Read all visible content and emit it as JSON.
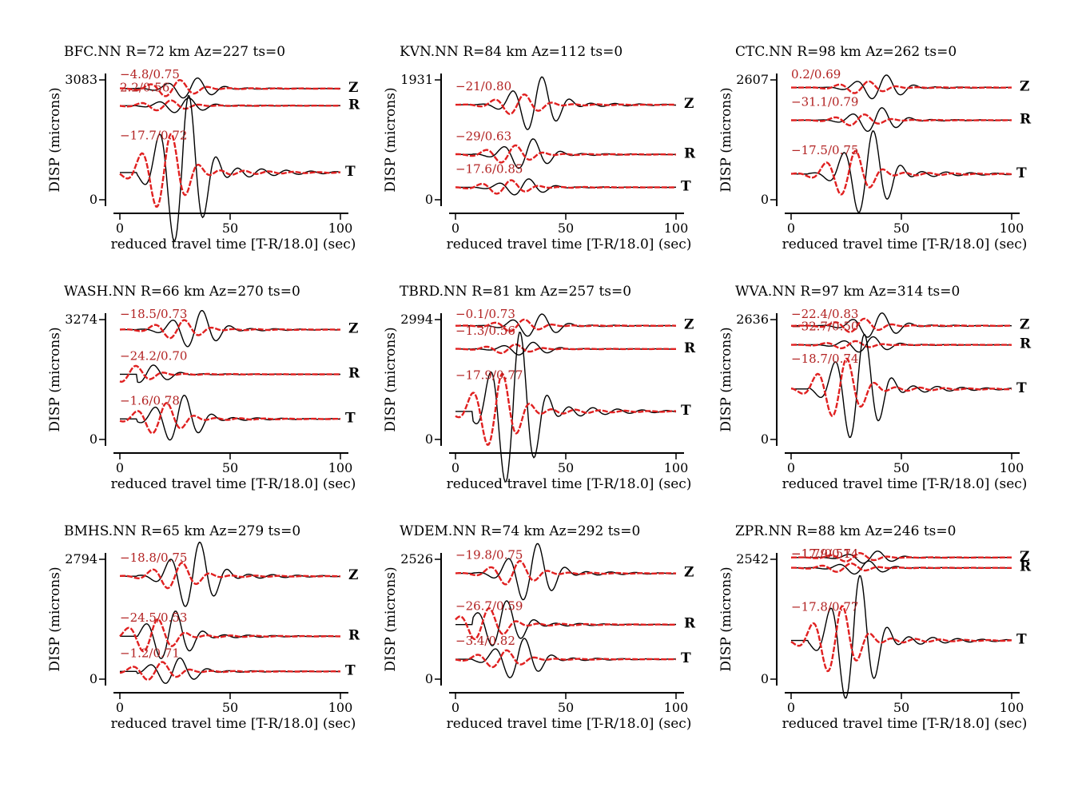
{
  "chart_data": [
    {
      "type": "line",
      "title": "BFC.NN R=72 km Az=227 ts=0",
      "ylabel": "DISP (microns)",
      "xlabel": "reduced travel time [T-R/18.0] (sec)",
      "xlim": [
        0,
        100
      ],
      "xticks": [
        "0",
        "50",
        "100"
      ],
      "ytick_top": "3083",
      "ytick_bottom": "0",
      "ylim": [
        0,
        3083
      ],
      "series_colors": {
        "observed": "#000000",
        "synthetic": "#e02020"
      },
      "traces": [
        {
          "component": "Z",
          "annotation": "−4.8/0.75",
          "baseline": 2860,
          "obs_amp": 260,
          "syn_amp": 210,
          "phase_s": 24
        },
        {
          "component": "R",
          "annotation": "2.2/0.56",
          "baseline": 2420,
          "obs_amp": 190,
          "syn_amp": 130,
          "phase_s": 20
        },
        {
          "component": "T",
          "annotation": "−17.7/0.72",
          "baseline": 700,
          "obs_amp": 1900,
          "syn_amp": 950,
          "phase_s": 20
        }
      ]
    },
    {
      "type": "line",
      "title": "KVN.NN R=84 km Az=112 ts=0",
      "ylabel": "DISP (microns)",
      "xlabel": "reduced travel time [T-R/18.0] (sec)",
      "xlim": [
        0,
        100
      ],
      "xticks": [
        "0",
        "50",
        "100"
      ],
      "ytick_top": "1931",
      "ytick_bottom": "0",
      "ylim": [
        0,
        1931
      ],
      "series_colors": {
        "observed": "#000000",
        "synthetic": "#e02020"
      },
      "traces": [
        {
          "component": "Z",
          "annotation": "−21/0.80",
          "baseline": 1530,
          "obs_amp": 430,
          "syn_amp": 160,
          "phase_s": 28
        },
        {
          "component": "R",
          "annotation": "−29/0.63",
          "baseline": 730,
          "obs_amp": 240,
          "syn_amp": 140,
          "phase_s": 24
        },
        {
          "component": "T",
          "annotation": "−17.6/0.85",
          "baseline": 200,
          "obs_amp": 130,
          "syn_amp": 110,
          "phase_s": 22
        }
      ]
    },
    {
      "type": "line",
      "title": "CTC.NN R=98 km Az=262 ts=0",
      "ylabel": "DISP (microns)",
      "xlabel": "reduced travel time [T-R/18.0] (sec)",
      "xlim": [
        0,
        100
      ],
      "xticks": [
        "0",
        "50",
        "100"
      ],
      "ytick_top": "2607",
      "ytick_bottom": "0",
      "ylim": [
        0,
        2607
      ],
      "series_colors": {
        "observed": "#000000",
        "synthetic": "#e02020"
      },
      "traces": [
        {
          "component": "Z",
          "annotation": "0.2/0.69",
          "baseline": 2440,
          "obs_amp": 260,
          "syn_amp": 130,
          "phase_s": 32
        },
        {
          "component": "R",
          "annotation": "−31.1/0.79",
          "baseline": 1730,
          "obs_amp": 260,
          "syn_amp": 120,
          "phase_s": 30
        },
        {
          "component": "T",
          "annotation": "−17.5/0.75",
          "baseline": 560,
          "obs_amp": 900,
          "syn_amp": 480,
          "phase_s": 26
        }
      ]
    },
    {
      "type": "line",
      "title": "WASH.NN R=66 km Az=270 ts=0",
      "ylabel": "DISP (microns)",
      "xlabel": "reduced travel time [T-R/18.0] (sec)",
      "xlim": [
        0,
        100
      ],
      "xticks": [
        "0",
        "50",
        "100"
      ],
      "ytick_top": "3274",
      "ytick_bottom": "0",
      "ylim": [
        0,
        3274
      ],
      "series_colors": {
        "observed": "#000000",
        "synthetic": "#e02020"
      },
      "traces": [
        {
          "component": "Z",
          "annotation": "−18.5/0.73",
          "baseline": 3000,
          "obs_amp": 500,
          "syn_amp": 250,
          "phase_s": 26
        },
        {
          "component": "R",
          "annotation": "−24.2/0.70",
          "baseline": 1780,
          "obs_amp": 240,
          "syn_amp": 220,
          "phase_s": 4
        },
        {
          "component": "T",
          "annotation": "−1.6/0.78",
          "baseline": 560,
          "obs_amp": 620,
          "syn_amp": 420,
          "phase_s": 18
        }
      ]
    },
    {
      "type": "line",
      "title": "TBRD.NN R=81 km Az=257 ts=0",
      "ylabel": "DISP (microns)",
      "xlabel": "reduced travel time [T-R/18.0] (sec)",
      "xlim": [
        0,
        100
      ],
      "xticks": [
        "0",
        "50",
        "100"
      ],
      "ytick_top": "2994",
      "ytick_bottom": "0",
      "ylim": [
        0,
        2994
      ],
      "series_colors": {
        "observed": "#000000",
        "synthetic": "#e02020"
      },
      "traces": [
        {
          "component": "Z",
          "annotation": "−0.1/0.73",
          "baseline": 2840,
          "obs_amp": 280,
          "syn_amp": 150,
          "phase_s": 28
        },
        {
          "component": "R",
          "annotation": "−1.3/0.56",
          "baseline": 2260,
          "obs_amp": 160,
          "syn_amp": 110,
          "phase_s": 24
        },
        {
          "component": "T",
          "annotation": "−17.9/0.77",
          "baseline": 700,
          "obs_amp": 1900,
          "syn_amp": 900,
          "phase_s": 18
        }
      ]
    },
    {
      "type": "line",
      "title": "WVA.NN R=97 km Az=314 ts=0",
      "ylabel": "DISP (microns)",
      "xlabel": "reduced travel time [T-R/18.0] (sec)",
      "xlim": [
        0,
        100
      ],
      "xticks": [
        "0",
        "50",
        "100"
      ],
      "ytick_top": "2636",
      "ytick_bottom": "0",
      "ylim": [
        0,
        2636
      ],
      "series_colors": {
        "observed": "#000000",
        "synthetic": "#e02020"
      },
      "traces": [
        {
          "component": "Z",
          "annotation": "−22.4/0.83",
          "baseline": 2500,
          "obs_amp": 270,
          "syn_amp": 150,
          "phase_s": 30
        },
        {
          "component": "R",
          "annotation": "−32.7/0.50",
          "baseline": 2080,
          "obs_amp": 170,
          "syn_amp": 80,
          "phase_s": 26
        },
        {
          "component": "T",
          "annotation": "−18.7/0.74",
          "baseline": 1110,
          "obs_amp": 1150,
          "syn_amp": 640,
          "phase_s": 22
        }
      ]
    },
    {
      "type": "line",
      "title": "BMHS.NN R=65 km Az=279 ts=0",
      "ylabel": "DISP (microns)",
      "xlabel": "reduced travel time [T-R/18.0] (sec)",
      "xlim": [
        0,
        100
      ],
      "xticks": [
        "0",
        "50",
        "100"
      ],
      "ytick_top": "2794",
      "ytick_bottom": "0",
      "ylim": [
        0,
        2794
      ],
      "series_colors": {
        "observed": "#000000",
        "synthetic": "#e02020"
      },
      "traces": [
        {
          "component": "Z",
          "annotation": "−18.8/0.75",
          "baseline": 2400,
          "obs_amp": 760,
          "syn_amp": 300,
          "phase_s": 25
        },
        {
          "component": "R",
          "annotation": "−24.5/0.53",
          "baseline": 1000,
          "obs_amp": 560,
          "syn_amp": 380,
          "phase_s": 14
        },
        {
          "component": "T",
          "annotation": "−1.2/0.71",
          "baseline": 180,
          "obs_amp": 300,
          "syn_amp": 210,
          "phase_s": 16
        }
      ]
    },
    {
      "type": "line",
      "title": "WDEM.NN R=74 km Az=292 ts=0",
      "ylabel": "DISP (microns)",
      "xlabel": "reduced travel time [T-R/18.0] (sec)",
      "xlim": [
        0,
        100
      ],
      "xticks": [
        "0",
        "50",
        "100"
      ],
      "ytick_top": "2526",
      "ytick_bottom": "0",
      "ylim": [
        0,
        2526
      ],
      "series_colors": {
        "observed": "#000000",
        "synthetic": "#e02020"
      },
      "traces": [
        {
          "component": "Z",
          "annotation": "−19.8/0.75",
          "baseline": 2230,
          "obs_amp": 600,
          "syn_amp": 250,
          "phase_s": 26
        },
        {
          "component": "R",
          "annotation": "−26.7/0.59",
          "baseline": 1150,
          "obs_amp": 480,
          "syn_amp": 330,
          "phase_s": 12
        },
        {
          "component": "T",
          "annotation": "−3.4/0.82",
          "baseline": 420,
          "obs_amp": 420,
          "syn_amp": 180,
          "phase_s": 20
        }
      ]
    },
    {
      "type": "line",
      "title": "ZPR.NN R=88 km Az=246 ts=0",
      "ylabel": "DISP (microns)",
      "xlabel": "reduced travel time [T-R/18.0] (sec)",
      "xlim": [
        0,
        100
      ],
      "xticks": [
        "0",
        "50",
        "100"
      ],
      "ytick_top": "2542",
      "ytick_bottom": "0",
      "ylim": [
        0,
        2542
      ],
      "series_colors": {
        "observed": "#000000",
        "synthetic": "#e02020"
      },
      "traces": [
        {
          "component": "Z",
          "annotation": "−17.9/0.74",
          "baseline": 2580,
          "obs_amp": 130,
          "syn_amp": 90,
          "phase_s": 28
        },
        {
          "component": "R",
          "annotation": "−1.7/0.51",
          "baseline": 2360,
          "obs_amp": 140,
          "syn_amp": 90,
          "phase_s": 24
        },
        {
          "component": "T",
          "annotation": "−17.8/0.77",
          "baseline": 820,
          "obs_amp": 1320,
          "syn_amp": 700,
          "phase_s": 20
        }
      ]
    }
  ]
}
